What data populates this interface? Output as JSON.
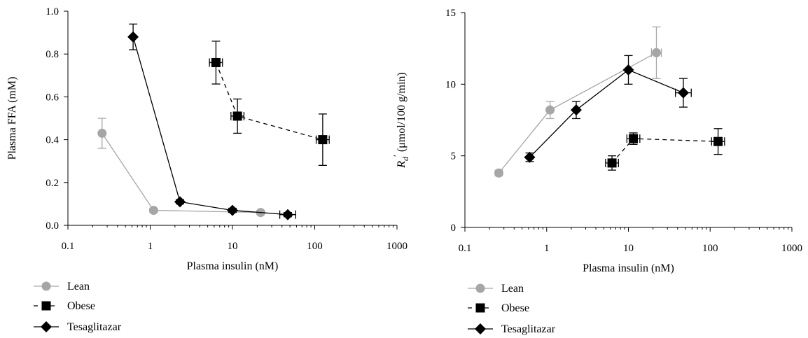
{
  "chart_data": [
    {
      "type": "scatter",
      "xlabel": "Plasma insulin (nM)",
      "ylabel": "Plasma FFA (mM)",
      "xscale": "log",
      "xlim": [
        0.1,
        1000
      ],
      "ylim": [
        0,
        1.0
      ],
      "xticks": [
        "0.1",
        "1",
        "10",
        "100",
        "1000"
      ],
      "yticks": [
        "0.0",
        "0.2",
        "0.4",
        "0.6",
        "0.8",
        "1.0"
      ],
      "grid": false,
      "legend_position": "bottom-left",
      "series": [
        {
          "name": "Lean",
          "color": "#a6a6a6",
          "marker": "circle",
          "line": "solid",
          "x": [
            0.26,
            1.1,
            22
          ],
          "y": [
            0.43,
            0.07,
            0.06
          ],
          "yerr": [
            0.07,
            0.01,
            0.01
          ],
          "xerr_factor": [
            1.0,
            1.0,
            1.0
          ]
        },
        {
          "name": "Obese",
          "color": "#000000",
          "marker": "square",
          "line": "dashed",
          "x": [
            6.3,
            11.5,
            125
          ],
          "y": [
            0.76,
            0.51,
            0.4
          ],
          "yerr": [
            0.1,
            0.08,
            0.12
          ],
          "xerr_factor": [
            1.2,
            1.2,
            1.2
          ]
        },
        {
          "name": "Tesaglitazar",
          "color": "#000000",
          "marker": "diamond",
          "line": "solid",
          "x": [
            0.62,
            2.3,
            10,
            47
          ],
          "y": [
            0.88,
            0.11,
            0.07,
            0.05
          ],
          "yerr": [
            0.06,
            0.01,
            0.01,
            0.01
          ],
          "xerr_factor": [
            1.0,
            1.0,
            1.0,
            1.25
          ]
        }
      ]
    },
    {
      "type": "scatter",
      "xlabel": "Plasma insulin (nM)",
      "ylabel": "R′d (μmol/100 g/min)",
      "ylabel_main": "R",
      "ylabel_sub": "d",
      "ylabel_prime": "′",
      "ylabel_rest": " (μmol/100 g/min)",
      "xscale": "log",
      "xlim": [
        0.1,
        1000
      ],
      "ylim": [
        0,
        15
      ],
      "xticks": [
        "0.1",
        "1",
        "10",
        "100",
        "1000"
      ],
      "yticks": [
        "0",
        "5",
        "10",
        "15"
      ],
      "grid": false,
      "legend_position": "bottom-left",
      "series": [
        {
          "name": "Lean",
          "color": "#a6a6a6",
          "marker": "circle",
          "line": "solid",
          "x": [
            0.26,
            1.1,
            22
          ],
          "y": [
            3.8,
            8.2,
            12.2
          ],
          "yerr": [
            0.2,
            0.6,
            1.8
          ],
          "xerr_factor": [
            1.0,
            1.0,
            1.15
          ]
        },
        {
          "name": "Obese",
          "color": "#000000",
          "marker": "square",
          "line": "dashed",
          "x": [
            6.3,
            11.5,
            125
          ],
          "y": [
            4.5,
            6.2,
            6.0
          ],
          "yerr": [
            0.5,
            0.4,
            0.9
          ],
          "xerr_factor": [
            1.2,
            1.2,
            1.2
          ]
        },
        {
          "name": "Tesaglitazar",
          "color": "#000000",
          "marker": "diamond",
          "line": "solid",
          "x": [
            0.62,
            2.3,
            10,
            47
          ],
          "y": [
            4.9,
            8.2,
            11.0,
            9.4
          ],
          "yerr": [
            0.3,
            0.6,
            1.0,
            1.0
          ],
          "xerr_factor": [
            1.0,
            1.0,
            1.0,
            1.25
          ]
        }
      ]
    }
  ]
}
